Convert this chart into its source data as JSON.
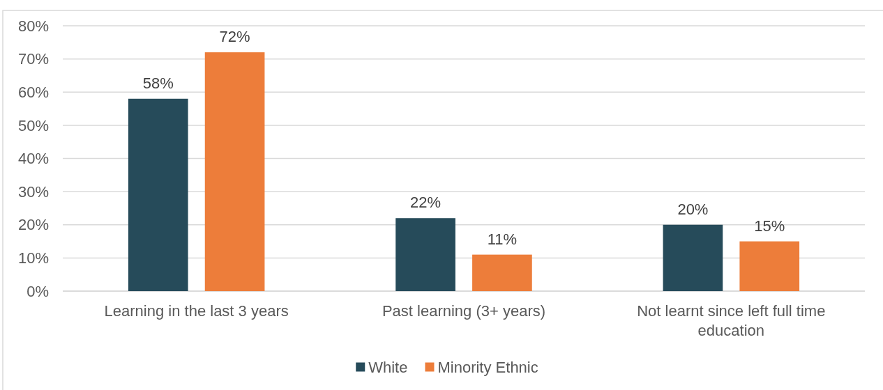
{
  "chart_data": {
    "type": "bar",
    "categories": [
      "Learning in the last 3 years",
      "Past learning (3+ years)",
      "Not learnt since left full time education"
    ],
    "series": [
      {
        "name": "White",
        "color": "#264b5a",
        "values": [
          58,
          22,
          20
        ],
        "value_labels": [
          "58%",
          "22%",
          "20%"
        ]
      },
      {
        "name": "Minority Ethnic",
        "color": "#ed7d3a",
        "values": [
          72,
          11,
          15
        ],
        "value_labels": [
          "72%",
          "11%",
          "15%"
        ]
      }
    ],
    "ylim": [
      0,
      80
    ],
    "yticks": [
      {
        "value": 0,
        "label": "0%"
      },
      {
        "value": 10,
        "label": "10%"
      },
      {
        "value": 20,
        "label": "20%"
      },
      {
        "value": 30,
        "label": "30%"
      },
      {
        "value": 40,
        "label": "40%"
      },
      {
        "value": 50,
        "label": "50%"
      },
      {
        "value": 60,
        "label": "60%"
      },
      {
        "value": 70,
        "label": "70%"
      },
      {
        "value": 80,
        "label": "80%"
      }
    ],
    "grid": "y",
    "legend": "bottom"
  }
}
